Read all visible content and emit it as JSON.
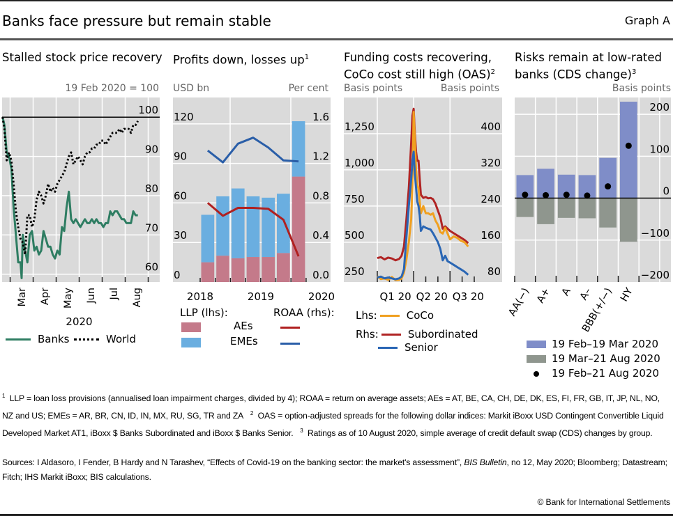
{
  "header": {
    "title": "Banks face pressure but remain stable",
    "graph_id": "Graph A"
  },
  "panels": {
    "p1": {
      "title": "Stalled stock price recovery",
      "unit_right": "19 Feb 2020 = 100",
      "year_label": "2020",
      "legend": {
        "banks": "Banks",
        "world": "World"
      }
    },
    "p2": {
      "title": "Profits down, losses up",
      "title_sup": "1",
      "unit_left": "USD bn",
      "unit_right": "Per cent",
      "legend": {
        "llp_label": "LLP (lhs):",
        "roaa_label": "ROAA (rhs):",
        "aes": "AEs",
        "emes": "EMEs"
      }
    },
    "p3": {
      "title_line1": "Funding costs recovering,",
      "title_line2": "CoCo cost still high (OAS)",
      "title_sup": "2",
      "unit_left": "Basis points",
      "unit_right": "Basis points",
      "legend": {
        "lhs": "Lhs:",
        "rhs": "Rhs:",
        "coco": "CoCo",
        "sub": "Subordinated",
        "senior": "Senior"
      }
    },
    "p4": {
      "title_line1": "Risks remain at low-rated",
      "title_line2": "banks (CDS change)",
      "title_sup": "3",
      "unit_right": "Basis points",
      "legend": {
        "a": "19 Feb–19 Mar 2020",
        "b": "19 Mar–21 Aug 2020",
        "c": "19 Feb–21 Aug 2020"
      }
    }
  },
  "colors": {
    "plot_bg": "#dadada",
    "grid": "#ffffff",
    "banks": "#2e7d62",
    "world": "#000000",
    "aes": "#c47a8a",
    "emes": "#6aaee0",
    "roaa_aes": "#b02020",
    "roaa_emes": "#2a5ea8",
    "coco": "#f0a020",
    "sub": "#b02424",
    "senior": "#2a66b4",
    "cds_a": "#7f8dc8",
    "cds_b": "#8f968e",
    "cds_c": "#000000"
  },
  "footnotes": {
    "n1": "LLP = loan loss provisions (annualised loan impairment charges, divided by 4); ROAA = return on average assets; AEs = AT, BE, CA, CH, DE, DK, ES, FI, FR, GB, IT, JP, NL, NO, NZ and US; EMEs = AR, BR, CN, ID, IN, MX, RU, SG, TR and ZA",
    "n2": "OAS = option-adjusted spreads for the following dollar indices: Markit iBoxx USD Contingent Convertible Liquid Developed Market AT1, iBoxx $ Banks Subordinated and iBoxx $ Banks Senior.",
    "n3": "Ratings as of 10 August 2020, simple average of credit default swap (CDS) changes by group.",
    "sources_pre": "Sources: I Aldasoro, I Fender, B Hardy and N Tarashev, “Effects of Covid-19 on the banking sector: the market's assessment”, ",
    "sources_italic": "BIS Bulletin",
    "sources_post": ", no 12, May 2020; Bloomberg; Datastream; Fitch; IHS Markit iBoxx; BIS calculations.",
    "copyright": "© Bank for International Settlements"
  },
  "chart_data": [
    {
      "id": "p1",
      "type": "line",
      "title": "Stalled stock price recovery",
      "ylabel": "19 Feb 2020 = 100",
      "ylim": [
        58,
        105
      ],
      "yticks": [
        60,
        70,
        80,
        90,
        100
      ],
      "xticks": [
        "Mar",
        "Apr",
        "May",
        "Jun",
        "Jul",
        "Aug"
      ],
      "xlabel": "2020",
      "reference_line": 100,
      "x_range_months": [
        -0.35,
        6.5
      ],
      "series": [
        {
          "name": "Banks",
          "x": [
            -0.33,
            -0.25,
            -0.15,
            -0.05,
            0.05,
            0.15,
            0.25,
            0.35,
            0.45,
            0.5,
            0.55,
            0.65,
            0.75,
            0.85,
            0.95,
            1.05,
            1.15,
            1.25,
            1.35,
            1.45,
            1.55,
            1.65,
            1.75,
            1.85,
            1.95,
            2.05,
            2.15,
            2.25,
            2.35,
            2.45,
            2.55,
            2.65,
            2.75,
            2.85,
            2.95,
            3.05,
            3.15,
            3.25,
            3.35,
            3.45,
            3.55,
            3.65,
            3.75,
            3.85,
            3.95,
            4.05,
            4.15,
            4.25,
            4.35,
            4.45,
            4.55,
            4.65,
            4.75,
            4.85,
            4.95,
            5.05,
            5.15,
            5.25,
            5.35,
            5.45,
            5.55
          ],
          "values": [
            100,
            98,
            91,
            90,
            87,
            77,
            70,
            63,
            63,
            59,
            70,
            66,
            63,
            70,
            71,
            66,
            67,
            65,
            66,
            71,
            69,
            67,
            67,
            65,
            64,
            66,
            65,
            72,
            71,
            77,
            81,
            74,
            73,
            74,
            73,
            72,
            73,
            74,
            73,
            73,
            74,
            73,
            74,
            73,
            73,
            72,
            73,
            73,
            76,
            75,
            76,
            76,
            75,
            74,
            74,
            73,
            73,
            73,
            76,
            75,
            75
          ]
        },
        {
          "name": "World",
          "x": [
            -0.33,
            -0.25,
            -0.15,
            -0.05,
            0.05,
            0.15,
            0.25,
            0.35,
            0.45,
            0.55,
            0.65,
            0.75,
            0.85,
            0.95,
            1.05,
            1.15,
            1.25,
            1.35,
            1.45,
            1.55,
            1.65,
            1.75,
            1.85,
            1.95,
            2.05,
            2.15,
            2.25,
            2.35,
            2.45,
            2.55,
            2.65,
            2.75,
            2.85,
            2.95,
            3.05,
            3.15,
            3.25,
            3.35,
            3.45,
            3.55,
            3.65,
            3.75,
            3.85,
            3.95,
            4.05,
            4.15,
            4.25,
            4.35,
            4.45,
            4.55,
            4.65,
            4.75,
            4.85,
            4.95,
            5.05,
            5.15,
            5.25,
            5.35,
            5.45,
            5.55
          ],
          "values": [
            100,
            97,
            89,
            91,
            89,
            83,
            76,
            72,
            69,
            68,
            65,
            75,
            75,
            72,
            74,
            79,
            81,
            80,
            78,
            80,
            83,
            81,
            82,
            81,
            83,
            84,
            85,
            86,
            88,
            90,
            91,
            88,
            89,
            90,
            89,
            88,
            90,
            91,
            91,
            92,
            92,
            93,
            93,
            94,
            94,
            93,
            94,
            95,
            96,
            96,
            96,
            97,
            96,
            97,
            97,
            97,
            96,
            98,
            98,
            99
          ]
        }
      ]
    },
    {
      "id": "p2",
      "type": "bar",
      "title": "Profits down, losses up",
      "ylabel_left": "USD bn",
      "ylabel_right": "Per cent",
      "ylim_left": [
        0,
        140
      ],
      "yticks_left": [
        0,
        30,
        60,
        90,
        120
      ],
      "ylim_right": [
        0,
        1.8667
      ],
      "yticks_right": [
        "0.0",
        "0.4",
        "0.8",
        "1.2",
        "1.6"
      ],
      "xtick_labels": [
        "2018",
        "2019",
        "2020"
      ],
      "categories": [
        "2018 Q2",
        "2018 Q3",
        "2018 Q4",
        "2019 Q1",
        "2019 Q2",
        "2019 Q3",
        "2019 Q4"
      ],
      "series": [
        {
          "name": "AEs (LLP, lhs)",
          "stacked": true,
          "values": [
            15,
            20,
            18,
            19,
            19,
            22,
            80
          ]
        },
        {
          "name": "EMEs (LLP, lhs)",
          "stacked": true,
          "values": [
            36,
            45,
            53,
            46,
            45,
            45,
            42
          ]
        },
        {
          "name": "AEs (ROAA, rhs)",
          "axis": "right",
          "values": [
            0.8,
            0.67,
            0.75,
            0.75,
            0.74,
            0.63,
            0.26
          ]
        },
        {
          "name": "EMEs (ROAA, rhs)",
          "axis": "right",
          "values": [
            1.33,
            1.21,
            1.4,
            1.46,
            1.36,
            1.23,
            1.22
          ]
        }
      ]
    },
    {
      "id": "p3",
      "type": "line",
      "title": "Funding costs recovering, CoCo cost still high (OAS)",
      "ylabel_left": "Basis points",
      "ylabel_right": "Basis points",
      "ylim_left": [
        225,
        1500
      ],
      "yticks_left": [
        "250",
        "500",
        "750",
        "1,000",
        "1,250"
      ],
      "ylim_right": [
        72,
        480
      ],
      "yticks_right": [
        "80",
        "160",
        "240",
        "320",
        "400"
      ],
      "xtick_labels": [
        "Q1 20",
        "Q2 20",
        "Q3 20"
      ],
      "x_range_months": [
        0,
        8.3
      ],
      "series": [
        {
          "name": "CoCo",
          "axis": "left",
          "x": [
            0,
            0.3,
            0.6,
            0.9,
            1.2,
            1.5,
            1.8,
            2.0,
            2.2,
            2.4,
            2.6,
            2.8,
            2.9,
            3.0,
            3.1,
            3.2,
            3.3,
            3.4,
            3.5,
            3.6,
            3.8,
            4.0,
            4.2,
            4.4,
            4.6,
            4.8,
            5.0,
            5.2,
            5.4,
            5.6,
            5.8,
            6.0,
            6.3,
            6.6,
            6.9,
            7.2,
            7.5
          ],
          "values": [
            265,
            245,
            250,
            240,
            260,
            238,
            240,
            250,
            290,
            380,
            500,
            660,
            900,
            1400,
            1200,
            1000,
            900,
            870,
            780,
            700,
            750,
            700,
            700,
            690,
            700,
            650,
            620,
            570,
            560,
            600,
            560,
            520,
            540,
            530,
            510,
            500,
            470
          ]
        },
        {
          "name": "Subordinated",
          "axis": "right",
          "x": [
            0,
            0.3,
            0.6,
            0.9,
            1.2,
            1.5,
            1.8,
            2.0,
            2.2,
            2.4,
            2.6,
            2.8,
            2.9,
            3.0,
            3.1,
            3.2,
            3.3,
            3.4,
            3.5,
            3.6,
            3.8,
            4.0,
            4.2,
            4.4,
            4.6,
            4.8,
            5.0,
            5.2,
            5.4,
            5.6,
            5.8,
            6.0,
            6.3,
            6.6,
            6.9,
            7.2,
            7.5
          ],
          "values": [
            125,
            127,
            122,
            126,
            124,
            120,
            123,
            130,
            150,
            210,
            280,
            380,
            440,
            455,
            400,
            360,
            340,
            340,
            300,
            265,
            258,
            260,
            257,
            258,
            255,
            245,
            230,
            215,
            190,
            195,
            190,
            185,
            180,
            175,
            170,
            165,
            158
          ]
        },
        {
          "name": "Senior",
          "axis": "right",
          "x": [
            0,
            0.3,
            0.6,
            0.9,
            1.2,
            1.5,
            1.8,
            2.0,
            2.2,
            2.4,
            2.6,
            2.8,
            2.9,
            3.0,
            3.1,
            3.2,
            3.3,
            3.4,
            3.5,
            3.6,
            3.8,
            4.0,
            4.2,
            4.4,
            4.6,
            4.8,
            5.0,
            5.2,
            5.4,
            5.6,
            5.8,
            6.0,
            6.3,
            6.6,
            6.9,
            7.2,
            7.5
          ],
          "values": [
            82,
            84,
            80,
            82,
            80,
            78,
            80,
            84,
            100,
            170,
            240,
            300,
            340,
            360,
            310,
            280,
            250,
            240,
            220,
            185,
            195,
            192,
            190,
            188,
            180,
            170,
            160,
            145,
            120,
            130,
            118,
            115,
            110,
            105,
            100,
            95,
            88
          ]
        }
      ]
    },
    {
      "id": "p4",
      "type": "bar",
      "title": "Risks remain at low-rated banks (CDS change)",
      "ylabel": "Basis points",
      "ylim": [
        -200,
        240
      ],
      "yticks": [
        "−200",
        "−100",
        "0",
        "100",
        "200"
      ],
      "categories": [
        "AA(−)",
        "A+",
        "A",
        "A–",
        "BBB(+/−)",
        "HY"
      ],
      "series": [
        {
          "name": "19 Feb–19 Mar 2020",
          "type": "bar",
          "values": [
            55,
            70,
            56,
            55,
            96,
            230
          ]
        },
        {
          "name": "19 Mar–21 Aug 2020",
          "type": "bar",
          "values": [
            -45,
            -62,
            -47,
            -48,
            -70,
            -104
          ]
        },
        {
          "name": "19 Feb–21 Aug 2020",
          "type": "dot",
          "values": [
            8,
            7,
            8,
            6,
            28,
            125
          ]
        }
      ]
    }
  ]
}
